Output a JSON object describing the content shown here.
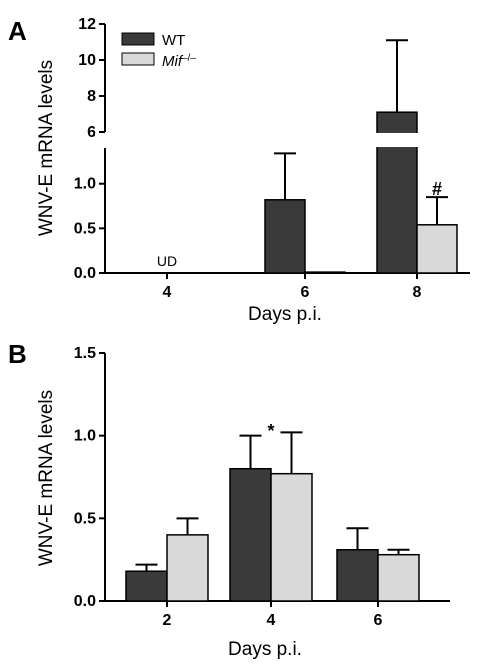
{
  "colors": {
    "wt": "#3a3a3a",
    "mif": "#d9d9d9",
    "edge": "#000000"
  },
  "chart_data": [
    {
      "type": "bar",
      "panel_label": "A",
      "title": "",
      "xlabel": "Days p.i.",
      "ylabel": "WNV-E mRNA levels",
      "categories": [
        "4",
        "6",
        "8"
      ],
      "series": [
        {
          "name": "WT",
          "values": [
            0,
            0.82,
            7.1
          ],
          "errors": [
            0,
            0.52,
            4.0
          ]
        },
        {
          "name": "Mif",
          "name_sup": "–/–",
          "values": [
            0,
            0.01,
            0.54
          ],
          "errors": [
            0,
            0,
            0.31
          ]
        }
      ],
      "broken_y_axis": true,
      "ylim_lower": [
        0,
        1.4
      ],
      "yticks_lower": [
        "0.0",
        "0.5",
        "1.0"
      ],
      "ylim_upper": [
        6,
        12
      ],
      "yticks_upper": [
        "6",
        "8",
        "10",
        "12"
      ],
      "legend": "top-left",
      "annotations": {
        "ud": "UD",
        "hash": "#"
      }
    },
    {
      "type": "bar",
      "panel_label": "B",
      "title": "",
      "xlabel": "Days p.i.",
      "ylabel": "WNV-E mRNA levels",
      "categories": [
        "2",
        "4",
        "6"
      ],
      "series": [
        {
          "name": "WT",
          "values": [
            0.18,
            0.8,
            0.31
          ],
          "errors": [
            0.04,
            0.2,
            0.13
          ]
        },
        {
          "name": "Mif",
          "name_sup": "–/–",
          "values": [
            0.4,
            0.77,
            0.28
          ],
          "errors": [
            0.1,
            0.25,
            0.03
          ]
        }
      ],
      "ylim": [
        0,
        1.5
      ],
      "yticks": [
        "0.0",
        "0.5",
        "1.0",
        "1.5"
      ],
      "annotations": {
        "star": "*"
      }
    }
  ]
}
